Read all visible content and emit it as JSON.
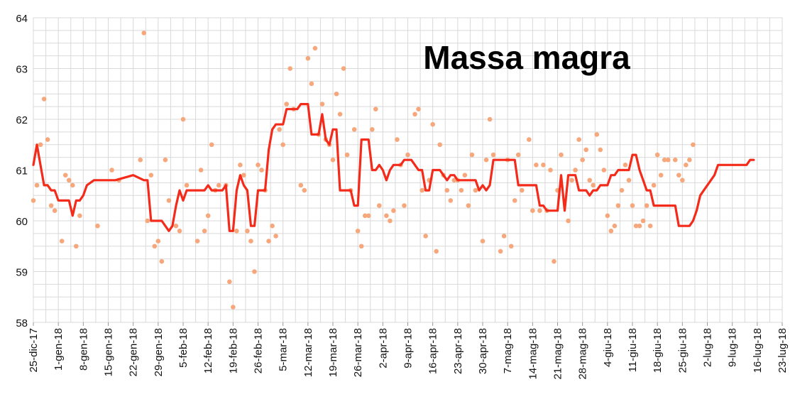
{
  "chart_data": {
    "type": "line",
    "title": "Massa magra",
    "xlabel": "",
    "ylabel": "",
    "ylim": [
      58,
      64
    ],
    "grid": true,
    "x_tick_labels": [
      "25-dic-17",
      "1-gen-18",
      "8-gen-18",
      "15-gen-18",
      "22-gen-18",
      "29-gen-18",
      "5-feb-18",
      "12-feb-18",
      "19-feb-18",
      "26-feb-18",
      "5-mar-18",
      "12-mar-18",
      "19-mar-18",
      "26-mar-18",
      "2-apr-18",
      "9-apr-18",
      "16-apr-18",
      "23-apr-18",
      "30-apr-18",
      "7-mag-18",
      "14-mag-18",
      "21-mag-18",
      "28-mag-18",
      "4-giu-18",
      "11-giu-18",
      "18-giu-18",
      "25-giu-18",
      "2-lug-18",
      "9-lug-18",
      "16-lug-18",
      "23-lug-18"
    ],
    "y_tick_labels": [
      "58",
      "59",
      "60",
      "61",
      "62",
      "63",
      "64"
    ],
    "colors": {
      "line": "#f42a1a",
      "points": "#f7a77c",
      "grid": "#d9d9d9"
    },
    "series": [
      {
        "kind": "line",
        "x": [
          0,
          1,
          2,
          3,
          4,
          5,
          6,
          7,
          8,
          9,
          10,
          11,
          12,
          13,
          14,
          15,
          17,
          20,
          23,
          28,
          31,
          32,
          33,
          35,
          36,
          37,
          38,
          39,
          40,
          41,
          42,
          43,
          44,
          45,
          46,
          47,
          48,
          49,
          50,
          51,
          52,
          53,
          54,
          55,
          56,
          57,
          58,
          59,
          60,
          61,
          62,
          63,
          64,
          65,
          66,
          67,
          68,
          69,
          70,
          71,
          72,
          73,
          74,
          75,
          76,
          77,
          78,
          79,
          80,
          81,
          82,
          83,
          84,
          85,
          86,
          87,
          88,
          89,
          90,
          91,
          92,
          93,
          94,
          95,
          96,
          97,
          98,
          99,
          100,
          101,
          102,
          103,
          104,
          105,
          106,
          107,
          108,
          109,
          110,
          111,
          112,
          113,
          114,
          115,
          116,
          117,
          118,
          119,
          120,
          121,
          122,
          123,
          124,
          125,
          126,
          127,
          128,
          129,
          130,
          131,
          132,
          133,
          134,
          135,
          136,
          137,
          138,
          139,
          140,
          141,
          142,
          143,
          144,
          145,
          146,
          147,
          148,
          149,
          150,
          151,
          152,
          153,
          154,
          155,
          156,
          157,
          158,
          159,
          160,
          161,
          162,
          163,
          164,
          165,
          166,
          167,
          168,
          169,
          170,
          171,
          172,
          173,
          174,
          175,
          176,
          177,
          178,
          179,
          180,
          181,
          182,
          183,
          184,
          185,
          186,
          187,
          188,
          189,
          190,
          191,
          192,
          193,
          194,
          195,
          196,
          197,
          198,
          199,
          200,
          201,
          202
        ],
        "y": [
          61.1,
          61.5,
          61.1,
          60.7,
          60.7,
          60.6,
          60.6,
          60.4,
          60.4,
          60.4,
          60.4,
          60.1,
          60.4,
          60.4,
          60.5,
          60.7,
          60.8,
          60.8,
          60.8,
          60.9,
          60.8,
          60.8,
          60.0,
          60.0,
          60.0,
          59.9,
          59.8,
          59.9,
          60.3,
          60.6,
          60.4,
          60.6,
          60.6,
          60.6,
          60.6,
          60.6,
          60.6,
          60.7,
          60.6,
          60.6,
          60.6,
          60.6,
          60.7,
          59.8,
          59.8,
          60.6,
          60.9,
          60.7,
          60.6,
          59.9,
          59.9,
          60.6,
          60.6,
          60.6,
          61.4,
          61.8,
          61.9,
          61.9,
          61.9,
          62.2,
          62.2,
          62.2,
          62.2,
          62.3,
          62.3,
          62.3,
          61.7,
          61.7,
          61.7,
          62.1,
          61.6,
          61.5,
          61.8,
          61.8,
          60.6,
          60.6,
          60.6,
          60.6,
          60.3,
          60.3,
          61.6,
          61.6,
          61.6,
          61.0,
          61.0,
          61.1,
          61.0,
          60.8,
          61.0,
          61.1,
          61.1,
          61.1,
          61.2,
          61.2,
          61.2,
          61.1,
          61.0,
          61.0,
          60.6,
          60.6,
          61.0,
          61.0,
          61.0,
          60.9,
          60.8,
          60.9,
          60.9,
          60.8,
          60.8,
          60.8,
          60.8,
          60.8,
          60.8,
          60.6,
          60.7,
          60.6,
          60.7,
          61.2,
          61.2,
          61.2,
          61.2,
          61.2,
          61.2,
          61.2,
          60.7,
          60.7,
          60.7,
          60.7,
          60.7,
          60.7,
          60.3,
          60.3,
          60.2,
          60.2,
          60.2,
          60.2,
          60.9,
          60.2,
          60.9,
          60.9,
          60.9,
          60.6,
          60.6,
          60.6,
          60.5,
          60.6,
          60.6,
          60.7,
          60.7,
          60.7,
          60.9,
          60.9,
          61.0,
          61.0,
          61.0,
          61.0,
          61.3,
          61.3,
          61.0,
          60.8,
          60.6,
          60.6,
          60.3,
          60.3,
          60.3,
          60.3,
          60.3,
          60.3,
          60.3,
          59.9,
          59.9,
          59.9,
          59.9,
          60.0,
          60.2,
          60.5,
          60.6,
          60.7,
          60.8,
          60.9,
          61.1,
          61.1,
          61.1,
          61.1,
          61.1,
          61.1,
          61.1,
          61.1,
          61.1,
          61.2,
          61.2
        ]
      },
      {
        "kind": "scatter",
        "points": [
          [
            0,
            60.4
          ],
          [
            1,
            60.7
          ],
          [
            2,
            61.5
          ],
          [
            3,
            62.4
          ],
          [
            4,
            61.6
          ],
          [
            5,
            60.3
          ],
          [
            6,
            60.2
          ],
          [
            8,
            59.6
          ],
          [
            9,
            60.9
          ],
          [
            10,
            60.8
          ],
          [
            11,
            60.7
          ],
          [
            12,
            59.5
          ],
          [
            13,
            60.1
          ],
          [
            18,
            59.9
          ],
          [
            22,
            61.0
          ],
          [
            24,
            60.8
          ],
          [
            30,
            61.2
          ],
          [
            31,
            63.7
          ],
          [
            32,
            60.0
          ],
          [
            33,
            60.9
          ],
          [
            34,
            59.5
          ],
          [
            35,
            59.6
          ],
          [
            36,
            59.2
          ],
          [
            37,
            61.2
          ],
          [
            38,
            60.4
          ],
          [
            40,
            59.9
          ],
          [
            41,
            59.8
          ],
          [
            42,
            62.0
          ],
          [
            43,
            60.7
          ],
          [
            46,
            59.6
          ],
          [
            47,
            61.0
          ],
          [
            48,
            59.8
          ],
          [
            49,
            60.1
          ],
          [
            50,
            61.5
          ],
          [
            51,
            60.6
          ],
          [
            52,
            60.7
          ],
          [
            54,
            60.7
          ],
          [
            55,
            58.8
          ],
          [
            56,
            58.3
          ],
          [
            57,
            59.8
          ],
          [
            58,
            61.1
          ],
          [
            59,
            60.9
          ],
          [
            60,
            59.8
          ],
          [
            61,
            59.6
          ],
          [
            62,
            59.0
          ],
          [
            63,
            61.1
          ],
          [
            64,
            61.0
          ],
          [
            65,
            60.6
          ],
          [
            66,
            59.6
          ],
          [
            67,
            59.9
          ],
          [
            68,
            59.7
          ],
          [
            69,
            61.8
          ],
          [
            70,
            61.5
          ],
          [
            71,
            62.3
          ],
          [
            72,
            63.0
          ],
          [
            73,
            62.2
          ],
          [
            75,
            60.7
          ],
          [
            76,
            60.6
          ],
          [
            77,
            63.2
          ],
          [
            78,
            62.7
          ],
          [
            79,
            63.4
          ],
          [
            80,
            61.7
          ],
          [
            81,
            62.3
          ],
          [
            82,
            61.6
          ],
          [
            83,
            61.5
          ],
          [
            84,
            61.2
          ],
          [
            85,
            62.5
          ],
          [
            86,
            62.1
          ],
          [
            87,
            63.0
          ],
          [
            88,
            61.3
          ],
          [
            89,
            60.6
          ],
          [
            90,
            61.8
          ],
          [
            91,
            59.8
          ],
          [
            92,
            59.5
          ],
          [
            93,
            60.1
          ],
          [
            94,
            60.1
          ],
          [
            95,
            61.8
          ],
          [
            96,
            62.2
          ],
          [
            97,
            60.3
          ],
          [
            99,
            60.1
          ],
          [
            100,
            60.0
          ],
          [
            101,
            60.2
          ],
          [
            102,
            61.6
          ],
          [
            103,
            61.1
          ],
          [
            104,
            60.3
          ],
          [
            105,
            61.3
          ],
          [
            107,
            62.1
          ],
          [
            108,
            62.2
          ],
          [
            109,
            60.6
          ],
          [
            110,
            59.7
          ],
          [
            111,
            60.8
          ],
          [
            112,
            61.9
          ],
          [
            113,
            59.4
          ],
          [
            114,
            61.5
          ],
          [
            115,
            60.9
          ],
          [
            116,
            60.6
          ],
          [
            117,
            60.4
          ],
          [
            118,
            60.8
          ],
          [
            119,
            60.8
          ],
          [
            120,
            60.6
          ],
          [
            121,
            60.9
          ],
          [
            122,
            60.3
          ],
          [
            123,
            61.3
          ],
          [
            124,
            60.6
          ],
          [
            126,
            59.6
          ],
          [
            127,
            61.2
          ],
          [
            128,
            62.0
          ],
          [
            129,
            61.3
          ],
          [
            131,
            59.4
          ],
          [
            132,
            59.7
          ],
          [
            133,
            61.2
          ],
          [
            134,
            59.5
          ],
          [
            135,
            60.4
          ],
          [
            136,
            61.3
          ],
          [
            137,
            60.6
          ],
          [
            139,
            61.6
          ],
          [
            140,
            60.2
          ],
          [
            141,
            61.1
          ],
          [
            142,
            60.2
          ],
          [
            143,
            61.1
          ],
          [
            144,
            60.2
          ],
          [
            145,
            61.0
          ],
          [
            146,
            59.2
          ],
          [
            147,
            60.6
          ],
          [
            148,
            61.3
          ],
          [
            150,
            60.0
          ],
          [
            151,
            60.8
          ],
          [
            152,
            61.0
          ],
          [
            153,
            61.6
          ],
          [
            154,
            61.2
          ],
          [
            155,
            61.4
          ],
          [
            156,
            60.8
          ],
          [
            157,
            60.7
          ],
          [
            158,
            61.7
          ],
          [
            159,
            61.4
          ],
          [
            160,
            61.0
          ],
          [
            161,
            60.1
          ],
          [
            162,
            59.8
          ],
          [
            163,
            59.9
          ],
          [
            164,
            60.3
          ],
          [
            165,
            60.6
          ],
          [
            166,
            61.1
          ],
          [
            167,
            60.8
          ],
          [
            168,
            60.3
          ],
          [
            169,
            59.9
          ],
          [
            170,
            59.9
          ],
          [
            171,
            60.0
          ],
          [
            172,
            60.3
          ],
          [
            173,
            59.9
          ],
          [
            174,
            60.7
          ],
          [
            175,
            61.3
          ],
          [
            176,
            60.9
          ],
          [
            177,
            61.2
          ],
          [
            178,
            61.2
          ],
          [
            180,
            61.2
          ],
          [
            181,
            60.9
          ],
          [
            182,
            60.8
          ],
          [
            183,
            61.1
          ],
          [
            184,
            61.2
          ],
          [
            185,
            61.5
          ]
        ]
      }
    ]
  }
}
